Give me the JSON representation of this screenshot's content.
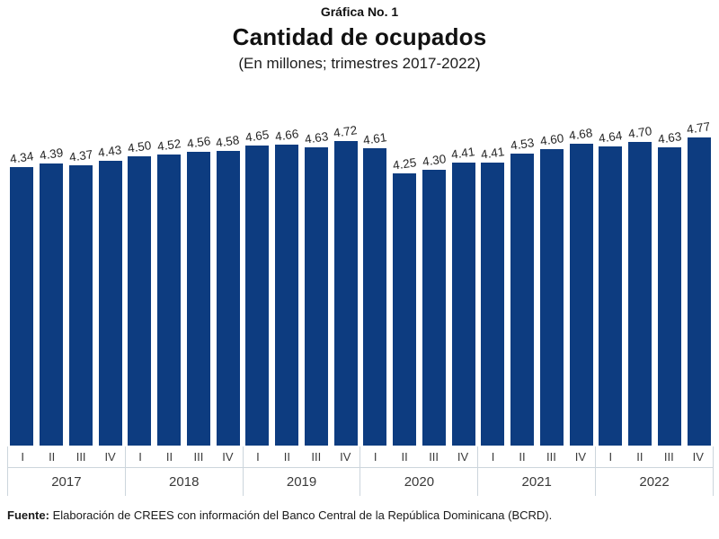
{
  "header": {
    "label": "Gráfica No. 1",
    "title": "Cantidad de ocupados",
    "subtitle": "(En millones; trimestres 2017-2022)"
  },
  "chart_data": {
    "type": "bar",
    "title": "Cantidad de ocupados",
    "subtitle": "(En millones; trimestres 2017-2022)",
    "unit": "millones de ocupados",
    "xlabel": "",
    "ylabel": "",
    "legend": "none",
    "grid": "off",
    "bar_color": "#0d3c80",
    "value_label_decimals": 2,
    "quarter_labels": [
      "I",
      "II",
      "III",
      "IV"
    ],
    "categories": [
      "2017",
      "2018",
      "2019",
      "2020",
      "2021",
      "2022"
    ],
    "series": [
      {
        "year": "2017",
        "values": [
          4.34,
          4.39,
          4.37,
          4.43
        ]
      },
      {
        "year": "2018",
        "values": [
          4.5,
          4.52,
          4.56,
          4.58
        ]
      },
      {
        "year": "2019",
        "values": [
          4.65,
          4.66,
          4.63,
          4.72
        ]
      },
      {
        "year": "2020",
        "values": [
          4.61,
          4.25,
          4.3,
          4.41
        ]
      },
      {
        "year": "2021",
        "values": [
          4.41,
          4.53,
          4.6,
          4.68
        ]
      },
      {
        "year": "2022",
        "values": [
          4.64,
          4.7,
          4.63,
          4.77
        ]
      }
    ]
  },
  "footer": {
    "source_label": "Fuente:",
    "source_text": " Elaboración de CREES con información del Banco Central de la República Dominicana (BCRD)."
  }
}
